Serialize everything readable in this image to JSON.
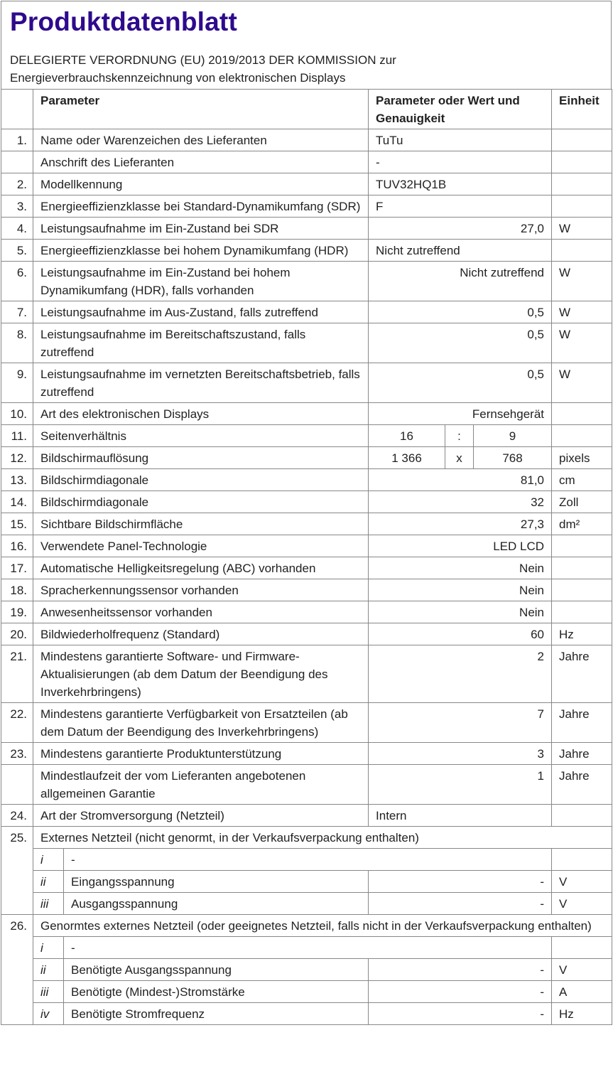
{
  "title": "Produktdatenblatt",
  "subtitle_line1": "DELEGIERTE VERORDNUNG (EU) 2019/2013 DER KOMMISSION zur",
  "subtitle_line2": "Energieverbrauchskennzeichnung von elektronischen Displays",
  "header": {
    "num": "",
    "parameter": "Parameter",
    "value": "Parameter oder Wert und Genauigkeit",
    "unit": "Einheit"
  },
  "rows": [
    {
      "type": "std",
      "num": "1.",
      "param": "Name oder Warenzeichen des Lieferanten",
      "value": "TuTu",
      "align": "l",
      "unit": ""
    },
    {
      "type": "std",
      "num": "",
      "param": "Anschrift des Lieferanten",
      "value": "-",
      "align": "l",
      "unit": ""
    },
    {
      "type": "std",
      "num": "2.",
      "param": "Modellkennung",
      "value": "TUV32HQ1B",
      "align": "l",
      "unit": ""
    },
    {
      "type": "std",
      "num": "3.",
      "param": "Energieeffizienzklasse bei Standard-Dynamikumfang (SDR)",
      "value": "F",
      "align": "l",
      "unit": ""
    },
    {
      "type": "std",
      "num": "4.",
      "param": "Leistungsaufnahme im Ein-Zustand bei SDR",
      "value": "27,0",
      "align": "r",
      "unit": "W"
    },
    {
      "type": "std",
      "num": "5.",
      "param": "Energieeffizienzklasse bei hohem Dynamikumfang (HDR)",
      "value": "Nicht zutreffend",
      "align": "l",
      "unit": ""
    },
    {
      "type": "std",
      "num": "6.",
      "param": "Leistungsaufnahme im Ein-Zustand bei hohem Dynamikumfang (HDR), falls vorhanden",
      "value": "Nicht zutreffend",
      "align": "r",
      "unit": "W"
    },
    {
      "type": "std",
      "num": "7.",
      "param": "Leistungsaufnahme im Aus-Zustand, falls zutreffend",
      "value": "0,5",
      "align": "r",
      "unit": "W"
    },
    {
      "type": "std",
      "num": "8.",
      "param": "Leistungsaufnahme im Bereitschaftszustand, falls zutreffend",
      "value": "0,5",
      "align": "r",
      "unit": "W"
    },
    {
      "type": "std",
      "num": "9.",
      "param": "Leistungsaufnahme im vernetzten Bereitschaftsbetrieb, falls zutreffend",
      "value": "0,5",
      "align": "r",
      "unit": "W"
    },
    {
      "type": "std",
      "num": "10.",
      "param": "Art des elektronischen Displays",
      "value": "Fernsehgerät",
      "align": "r",
      "unit": ""
    },
    {
      "type": "split",
      "num": "11.",
      "param": "Seitenverhältnis",
      "v1": "16",
      "sep": ":",
      "v2": "9",
      "unit": ""
    },
    {
      "type": "split",
      "num": "12.",
      "param": "Bildschirmauflösung",
      "v1": "1 366",
      "sep": "x",
      "v2": "768",
      "unit": "pixels"
    },
    {
      "type": "std",
      "num": "13.",
      "param": "Bildschirmdiagonale",
      "value": "81,0",
      "align": "r",
      "unit": "cm"
    },
    {
      "type": "std",
      "num": "14.",
      "param": "Bildschirmdiagonale",
      "value": "32",
      "align": "r",
      "unit": "Zoll"
    },
    {
      "type": "std",
      "num": "15.",
      "param": "Sichtbare Bildschirmfläche",
      "value": "27,3",
      "align": "r",
      "unit": "dm²"
    },
    {
      "type": "std",
      "num": "16.",
      "param": "Verwendete Panel-Technologie",
      "value": "LED LCD",
      "align": "r",
      "unit": ""
    },
    {
      "type": "std",
      "num": "17.",
      "param": "Automatische Helligkeitsregelung (ABC) vorhanden",
      "value": "Nein",
      "align": "r",
      "unit": ""
    },
    {
      "type": "std",
      "num": "18.",
      "param": "Spracherkennungssensor vorhanden",
      "value": "Nein",
      "align": "r",
      "unit": ""
    },
    {
      "type": "std",
      "num": "19.",
      "param": "Anwesenheitssensor vorhanden",
      "value": "Nein",
      "align": "r",
      "unit": ""
    },
    {
      "type": "std",
      "num": "20.",
      "param": "Bildwiederholfrequenz (Standard)",
      "value": "60",
      "align": "r",
      "unit": "Hz"
    },
    {
      "type": "std",
      "num": "21.",
      "param": "Mindestens garantierte Software- und Firmware-Aktualisierungen (ab dem Datum der Beendigung des Inverkehrbringens)",
      "value": "2",
      "align": "r",
      "unit": "Jahre"
    },
    {
      "type": "std",
      "num": "22.",
      "param": "Mindestens garantierte Verfügbarkeit von Ersatzteilen (ab dem Datum der Beendigung des Inverkehrbringens)",
      "value": "7",
      "align": "r",
      "unit": "Jahre"
    },
    {
      "type": "std",
      "num": "23.",
      "param": "Mindestens garantierte Produktunterstützung",
      "value": "3",
      "align": "r",
      "unit": "Jahre"
    },
    {
      "type": "std",
      "num": "",
      "param": "Mindestlaufzeit der vom Lieferanten angebotenen allgemeinen Garantie",
      "value": "1",
      "align": "r",
      "unit": "Jahre"
    },
    {
      "type": "std",
      "num": "24.",
      "param": "Art der Stromversorgung (Netzteil)",
      "value": "Intern",
      "align": "l",
      "unit": ""
    }
  ],
  "groups": [
    {
      "num": "25.",
      "title": "Externes Netzteil (nicht genormt, in der Verkaufsverpackung enthalten)",
      "sub": [
        {
          "idx": "i",
          "param": "-",
          "full": true,
          "unit": ""
        },
        {
          "idx": "ii",
          "param": "Eingangsspannung",
          "value": "-",
          "unit": "V"
        },
        {
          "idx": "iii",
          "param": "Ausgangsspannung",
          "value": "-",
          "unit": "V"
        }
      ]
    },
    {
      "num": "26.",
      "title": "Genormtes externes Netzteil (oder geeignetes Netzteil, falls nicht in der Verkaufsverpackung enthalten)",
      "sub": [
        {
          "idx": "i",
          "param": "-",
          "full": true,
          "unit": ""
        },
        {
          "idx": "ii",
          "param": "Benötigte Ausgangsspannung",
          "value": "-",
          "unit": "V"
        },
        {
          "idx": "iii",
          "param": "Benötigte (Mindest-)Stromstärke",
          "value": "-",
          "unit": "A"
        },
        {
          "idx": "iv",
          "param": "Benötigte Stromfrequenz",
          "value": "-",
          "unit": "Hz"
        }
      ]
    }
  ]
}
